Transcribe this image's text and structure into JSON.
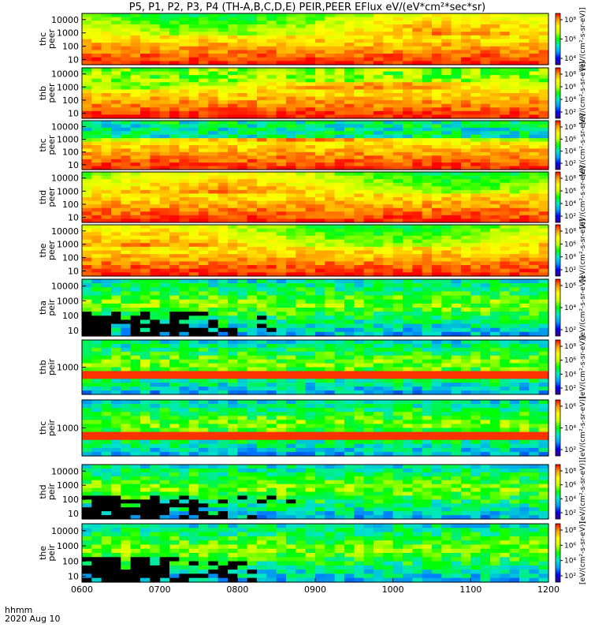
{
  "title": "P5, P1, P2, P3, P4 (TH-A,B,C,D,E) PEIR,PEER EFlux eV/(eV*cm²*sec*sr)",
  "footer": {
    "time_format": "hhmm",
    "date": "2020 Aug 10"
  },
  "colorbar": {
    "unit_label": "[eV/(cm²-s-sr-eV)]",
    "colors": [
      "#3b0088",
      "#0000ff",
      "#00a0ff",
      "#00e8c8",
      "#00ff00",
      "#c8ff00",
      "#ffff00",
      "#ffa000",
      "#ff0000"
    ]
  },
  "chart_data": {
    "type": "heatmap",
    "x_ticks": [
      "0600",
      "0700",
      "0800",
      "0900",
      "1000",
      "1100",
      "1200"
    ],
    "xlim": [
      "0600",
      "1200"
    ],
    "panels": [
      {
        "name": "thc peer",
        "y_ticks": [
          "10000",
          "1000",
          "100",
          "10"
        ],
        "cb_ticks": [
          "10⁸",
          "10⁶",
          "10⁴"
        ],
        "yscale": "log"
      },
      {
        "name": "thb peer",
        "y_ticks": [
          "10000",
          "1000",
          "100",
          "10"
        ],
        "cb_ticks": [
          "10⁸",
          "10⁶",
          "10⁴",
          "10²"
        ],
        "yscale": "log"
      },
      {
        "name": "thc peer",
        "y_ticks": [
          "10000",
          "1000",
          "100",
          "10"
        ],
        "cb_ticks": [
          "10⁸",
          "10⁶",
          "10⁴",
          "10²"
        ],
        "yscale": "log"
      },
      {
        "name": "thd peer",
        "y_ticks": [
          "10000",
          "1000",
          "100",
          "10"
        ],
        "cb_ticks": [
          "10⁸",
          "10⁶",
          "10⁴",
          "10²"
        ],
        "yscale": "log"
      },
      {
        "name": "the peer",
        "y_ticks": [
          "10000",
          "1000",
          "100",
          "10"
        ],
        "cb_ticks": [
          "10⁸",
          "10⁶",
          "10⁴",
          "10²"
        ],
        "yscale": "log"
      },
      {
        "name": "tha peir",
        "y_ticks": [
          "10000",
          "1000",
          "100",
          "10"
        ],
        "cb_ticks": [
          "10⁶",
          "10⁴",
          "10²"
        ],
        "yscale": "log"
      },
      {
        "name": "thb peir",
        "y_ticks": [
          "1000"
        ],
        "cb_ticks": [
          "10⁸",
          "10⁶",
          "10⁴",
          "10²"
        ],
        "yscale": "log"
      },
      {
        "name": "thc peir",
        "y_ticks": [
          "1000"
        ],
        "cb_ticks": [
          "10⁶",
          "10⁴",
          "10²"
        ],
        "yscale": "log"
      },
      {
        "name": "thd peir",
        "y_ticks": [
          "10000",
          "1000",
          "100",
          "10"
        ],
        "cb_ticks": [
          "10⁸",
          "10⁶",
          "10⁴",
          "10²"
        ],
        "yscale": "log"
      },
      {
        "name": "the peir",
        "y_ticks": [
          "10000",
          "1000",
          "100",
          "10"
        ],
        "cb_ticks": [
          "10⁸",
          "10⁶",
          "10⁴",
          "10²"
        ],
        "yscale": "log"
      }
    ]
  }
}
